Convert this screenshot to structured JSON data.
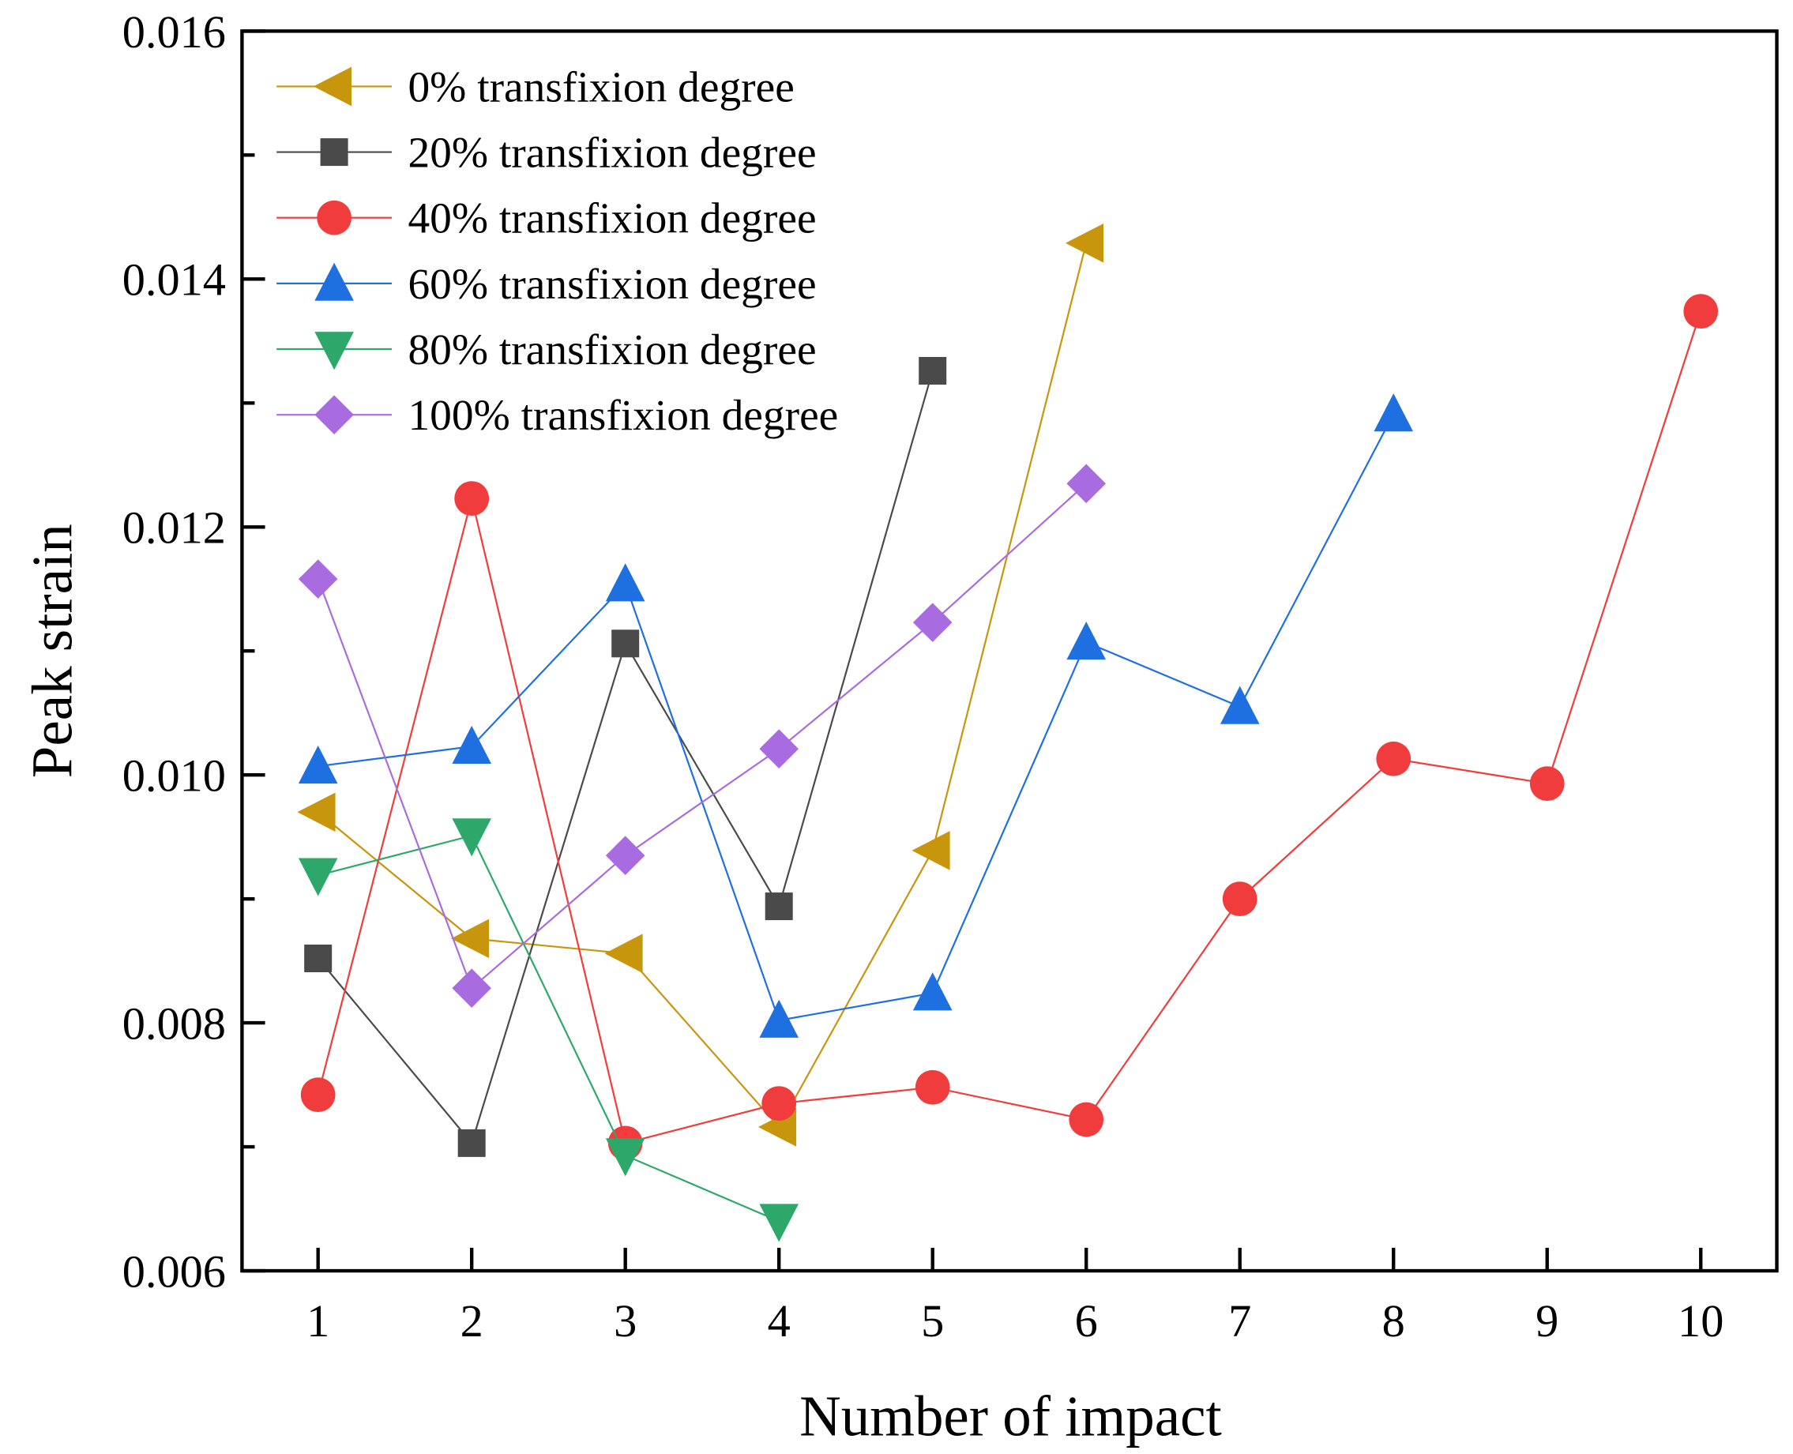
{
  "chart_data": {
    "type": "line",
    "title": "",
    "xlabel": "Number of impact",
    "ylabel": "Peak strain",
    "xlim": [
      0.5,
      10.5
    ],
    "ylim": [
      0.006,
      0.016
    ],
    "xticks": [
      "1",
      "2",
      "3",
      "4",
      "5",
      "6",
      "7",
      "8",
      "9",
      "10"
    ],
    "yticks": [
      "0.006",
      "0.008",
      "0.010",
      "0.012",
      "0.014",
      "0.016"
    ],
    "grid": false,
    "legend_position": "top-left",
    "series": [
      {
        "name": "0% transfixion degree",
        "color": "#C8960C",
        "marker": "triangle-left",
        "x": [
          1,
          2,
          3,
          4,
          5,
          6
        ],
        "values": [
          0.0097,
          0.00868,
          0.00856,
          0.00716,
          0.00939,
          0.01429
        ]
      },
      {
        "name": "20% transfixion degree",
        "color": "#4A4A4A",
        "marker": "square",
        "x": [
          1,
          2,
          3,
          4,
          5
        ],
        "values": [
          0.00852,
          0.00703,
          0.01106,
          0.00894,
          0.01326
        ]
      },
      {
        "name": "40% transfixion degree",
        "color": "#F03C3C",
        "marker": "circle",
        "x": [
          1,
          2,
          3,
          4,
          5,
          6,
          7,
          8,
          9,
          10
        ],
        "values": [
          0.00742,
          0.01223,
          0.00703,
          0.00735,
          0.00748,
          0.00722,
          0.009,
          0.01013,
          0.00993,
          0.01374
        ]
      },
      {
        "name": "60% transfixion degree",
        "color": "#1E6FE0",
        "marker": "triangle-up",
        "x": [
          1,
          2,
          3,
          4,
          5,
          6,
          7,
          8
        ],
        "values": [
          0.01007,
          0.01023,
          0.01154,
          0.00802,
          0.00824,
          0.01107,
          0.01055,
          0.01291
        ]
      },
      {
        "name": "80% transfixion degree",
        "color": "#2EA86A",
        "marker": "triangle-down",
        "x": [
          1,
          2,
          3,
          4
        ],
        "values": [
          0.00919,
          0.00951,
          0.00693,
          0.0064
        ]
      },
      {
        "name": "100% transfixion degree",
        "color": "#A96CE0",
        "marker": "diamond",
        "x": [
          1,
          2,
          3,
          4,
          5,
          6
        ],
        "values": [
          0.01158,
          0.00828,
          0.00935,
          0.01021,
          0.01123,
          0.01235
        ]
      }
    ]
  }
}
